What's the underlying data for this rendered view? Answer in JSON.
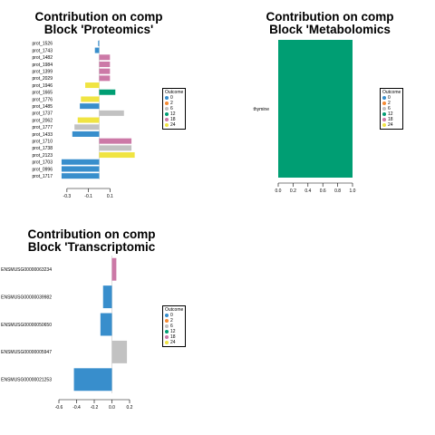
{
  "chart_data": [
    {
      "type": "bar",
      "orientation": "horizontal",
      "title": "Contribution on comp\nBlock 'Proteomics'",
      "categories": [
        "prot_1526",
        "prot_1743",
        "prot_1482",
        "prot_1984",
        "prot_1399",
        "prot_2029",
        "prot_1946",
        "prot_1665",
        "prot_1776",
        "prot_1485",
        "prot_1737",
        "prot_2062",
        "prot_1777",
        "prot_1433",
        "prot_1710",
        "prot_1738",
        "prot_2123",
        "prot_1703",
        "prot_0996",
        "prot_1717"
      ],
      "values": [
        -0.01,
        -0.04,
        0.1,
        0.1,
        0.1,
        0.1,
        -0.13,
        0.15,
        -0.17,
        -0.18,
        0.23,
        -0.2,
        -0.23,
        -0.25,
        0.3,
        0.3,
        0.33,
        -0.35,
        -0.35,
        -0.35
      ],
      "outcome": [
        "0",
        "0",
        "18",
        "18",
        "18",
        "18",
        "24",
        "12",
        "24",
        "0",
        "6",
        "24",
        "6",
        "0",
        "18",
        "6",
        "24",
        "0",
        "0",
        "0"
      ],
      "xticks": [
        -0.3,
        -0.1,
        0.1
      ],
      "xtick_labels": [
        "-0.3",
        "-0.1",
        "0.1"
      ],
      "xlim": [
        -0.4,
        0.35
      ]
    },
    {
      "type": "bar",
      "orientation": "horizontal",
      "title": "Contribution on comp\nBlock 'Metabolomics",
      "categories": [
        "thymine"
      ],
      "values": [
        1.0
      ],
      "outcome": [
        "12"
      ],
      "xticks": [
        0.0,
        0.2,
        0.4,
        0.6,
        0.8,
        1.0
      ],
      "xtick_labels": [
        "0.0",
        "0.2",
        "0.4",
        "0.6",
        "0.8",
        "1.0"
      ],
      "xlim": [
        0,
        1.0
      ]
    },
    {
      "type": "bar",
      "orientation": "horizontal",
      "title": "Contribution on comp\nBlock 'Transcriptomic",
      "categories": [
        "ENSMUSG00000063234",
        "ENSMUSG00000039982",
        "ENSMUSG00000050650",
        "ENSMUSG00000005947",
        "ENSMUSG00000021253"
      ],
      "values": [
        0.05,
        -0.1,
        -0.13,
        0.17,
        -0.43
      ],
      "outcome": [
        "18",
        "0",
        "0",
        "6",
        "0"
      ],
      "xticks": [
        -0.6,
        -0.4,
        -0.2,
        0.0,
        0.2
      ],
      "xtick_labels": [
        "-0.6",
        "-0.4",
        "-0.2",
        "0.0",
        "0.2"
      ],
      "xlim": [
        -0.6,
        0.2
      ]
    }
  ],
  "legend": {
    "title": "Outcome",
    "items": [
      {
        "label": "0",
        "color": "#388ECC"
      },
      {
        "label": "2",
        "color": "#F68B33"
      },
      {
        "label": "6",
        "color": "#C2C2C2"
      },
      {
        "label": "12",
        "color": "#009E73"
      },
      {
        "label": "18",
        "color": "#CC79A7"
      },
      {
        "label": "24",
        "color": "#F0E442"
      }
    ]
  }
}
